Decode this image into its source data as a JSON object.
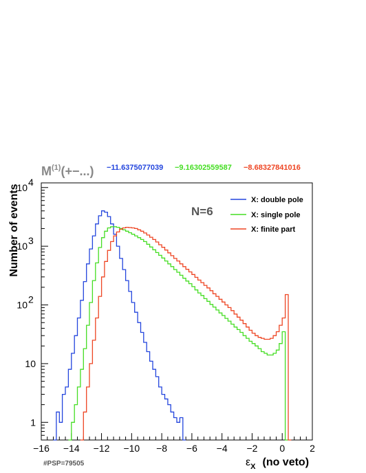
{
  "header": {
    "title_main": "M",
    "title_sup": "(1)",
    "title_rest": "(+−...)",
    "values": [
      {
        "text": "−11.6375077039",
        "color": "#2244dd"
      },
      {
        "text": "−9.16302559587",
        "color": "#44dd22"
      },
      {
        "text": "−8.68327841016",
        "color": "#ee4422"
      }
    ]
  },
  "annotation": "N=6",
  "footer": "#PSP=79505",
  "chart_data": {
    "type": "line",
    "title": "M(1)(+−...)",
    "xlabel_symbol": "ε",
    "xlabel_sub": "X",
    "xlabel_rest": "(no veto)",
    "ylabel": "Number of events",
    "xlim": [
      -16,
      2
    ],
    "ylim": [
      0.5,
      12000
    ],
    "yscale": "log",
    "x_ticks": [
      -16,
      -14,
      -12,
      -10,
      -8,
      -6,
      -4,
      -2,
      0,
      2
    ],
    "x_tick_labels": [
      "−16",
      "−14",
      "−12",
      "−10",
      "−8",
      "−6",
      "−4",
      "−2",
      "0",
      "2"
    ],
    "y_ticks": [
      {
        "value": 1,
        "base": "1"
      },
      {
        "value": 10,
        "base": "10"
      },
      {
        "value": 100,
        "base": "10",
        "exp": "2"
      },
      {
        "value": 1000,
        "base": "10",
        "exp": "3"
      },
      {
        "value": 10000,
        "base": "10",
        "exp": "4"
      }
    ],
    "legend_position": "top-right",
    "series": [
      {
        "name": "X: double pole",
        "color": "#2244dd",
        "x": [
          -15.1,
          -14.9,
          -14.7,
          -14.5,
          -14.3,
          -14.1,
          -13.9,
          -13.7,
          -13.5,
          -13.3,
          -13.1,
          -12.9,
          -12.7,
          -12.5,
          -12.3,
          -12.1,
          -11.9,
          -11.7,
          -11.5,
          -11.3,
          -11.1,
          -10.9,
          -10.7,
          -10.5,
          -10.3,
          -10.1,
          -9.9,
          -9.7,
          -9.5,
          -9.3,
          -9.1,
          -8.9,
          -8.7,
          -8.5,
          -8.3,
          -8.1,
          -7.9,
          -7.7,
          -7.5,
          -7.3,
          -7.1,
          -6.9,
          -6.7,
          -6.5
        ],
        "y": [
          0.5,
          1.5,
          1,
          3,
          4,
          8,
          15,
          30,
          60,
          120,
          250,
          500,
          900,
          1500,
          2400,
          3300,
          4000,
          3800,
          3200,
          2400,
          1600,
          1000,
          620,
          400,
          260,
          170,
          110,
          75,
          50,
          34,
          23,
          16,
          11,
          8,
          6,
          4,
          3,
          2.5,
          2,
          1.5,
          1.2,
          1,
          1.2,
          0.5
        ]
      },
      {
        "name": "X: single pole",
        "color": "#44dd22",
        "x": [
          -14.1,
          -13.9,
          -13.7,
          -13.5,
          -13.3,
          -13.1,
          -12.9,
          -12.7,
          -12.5,
          -12.3,
          -12.1,
          -11.9,
          -11.7,
          -11.5,
          -11.3,
          -11.1,
          -10.9,
          -10.7,
          -10.5,
          -10.3,
          -10.1,
          -9.9,
          -9.7,
          -9.5,
          -9.3,
          -9.1,
          -8.9,
          -8.7,
          -8.5,
          -8.3,
          -8.1,
          -7.9,
          -7.7,
          -7.5,
          -7.3,
          -7.1,
          -6.9,
          -6.7,
          -6.5,
          -6.3,
          -6.1,
          -5.9,
          -5.7,
          -5.5,
          -5.3,
          -5.1,
          -4.9,
          -4.7,
          -4.5,
          -4.3,
          -4.1,
          -3.9,
          -3.7,
          -3.5,
          -3.3,
          -3.1,
          -2.9,
          -2.7,
          -2.5,
          -2.3,
          -2.1,
          -1.9,
          -1.7,
          -1.5,
          -1.3,
          -1.1,
          -0.9,
          -0.7,
          -0.5,
          -0.3,
          -0.1,
          0.1,
          0.3
        ],
        "y": [
          0.5,
          1,
          2,
          4,
          8,
          18,
          45,
          110,
          260,
          520,
          950,
          1400,
          1800,
          2050,
          2150,
          2150,
          2100,
          2000,
          1900,
          1800,
          1700,
          1600,
          1500,
          1400,
          1300,
          1200,
          1080,
          970,
          870,
          780,
          700,
          630,
          560,
          500,
          450,
          400,
          360,
          320,
          285,
          255,
          230,
          205,
          180,
          160,
          145,
          128,
          115,
          102,
          92,
          82,
          73,
          66,
          59,
          53,
          47,
          42,
          38,
          34,
          30,
          27,
          24,
          22,
          20,
          18,
          16,
          15,
          14,
          14,
          15,
          17,
          22,
          35,
          0.5
        ]
      },
      {
        "name": "X: finite part",
        "color": "#ee4422",
        "x": [
          -13.3,
          -13.1,
          -12.9,
          -12.7,
          -12.5,
          -12.3,
          -12.1,
          -11.9,
          -11.7,
          -11.5,
          -11.3,
          -11.1,
          -10.9,
          -10.7,
          -10.5,
          -10.3,
          -10.1,
          -9.9,
          -9.7,
          -9.5,
          -9.3,
          -9.1,
          -8.9,
          -8.7,
          -8.5,
          -8.3,
          -8.1,
          -7.9,
          -7.7,
          -7.5,
          -7.3,
          -7.1,
          -6.9,
          -6.7,
          -6.5,
          -6.3,
          -6.1,
          -5.9,
          -5.7,
          -5.5,
          -5.3,
          -5.1,
          -4.9,
          -4.7,
          -4.5,
          -4.3,
          -4.1,
          -3.9,
          -3.7,
          -3.5,
          -3.3,
          -3.1,
          -2.9,
          -2.7,
          -2.5,
          -2.3,
          -2.1,
          -1.9,
          -1.7,
          -1.5,
          -1.3,
          -1.1,
          -0.9,
          -0.7,
          -0.5,
          -0.3,
          -0.1,
          0.1,
          0.3,
          0.5
        ],
        "y": [
          0.5,
          1.5,
          4,
          10,
          25,
          60,
          140,
          300,
          550,
          850,
          1200,
          1500,
          1750,
          1950,
          2050,
          2100,
          2080,
          2050,
          2000,
          1900,
          1800,
          1680,
          1550,
          1420,
          1300,
          1180,
          1060,
          960,
          860,
          770,
          690,
          620,
          560,
          500,
          450,
          405,
          365,
          330,
          295,
          265,
          240,
          215,
          195,
          175,
          155,
          140,
          125,
          112,
          100,
          90,
          80,
          70,
          62,
          55,
          48,
          42,
          37,
          33,
          30,
          28,
          27,
          26,
          26,
          27,
          30,
          35,
          45,
          60,
          150,
          0.5
        ]
      }
    ]
  }
}
